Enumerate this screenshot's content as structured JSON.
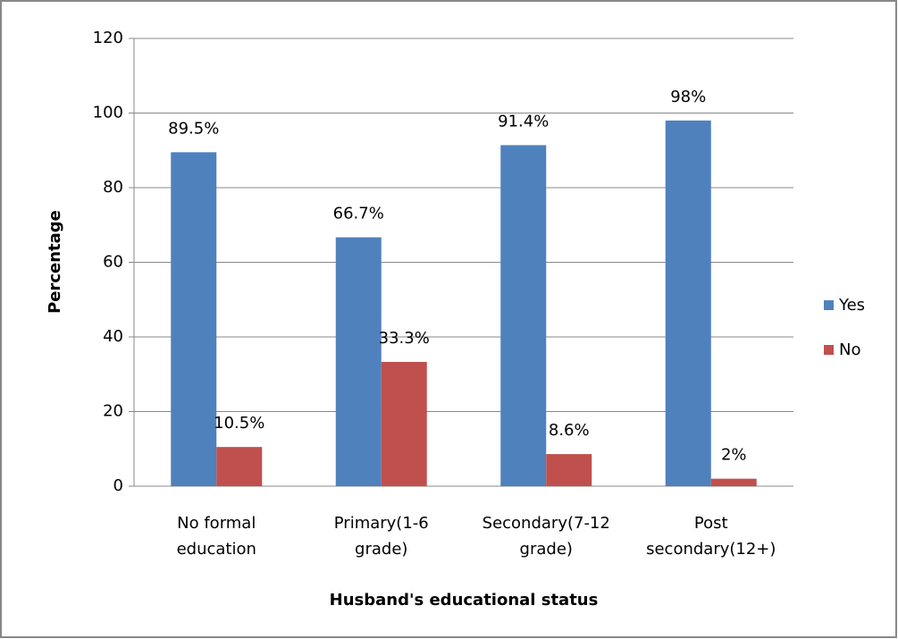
{
  "chart_data": {
    "type": "bar",
    "x_label": "Husband's educational status",
    "y_label": "Percentage",
    "categories": [
      [
        "No formal",
        "education"
      ],
      [
        "Primary(1-6",
        "grade)"
      ],
      [
        "Secondary(7-12",
        "grade)"
      ],
      [
        "Post",
        "secondary(12+)"
      ]
    ],
    "series": [
      {
        "name": "Yes",
        "color": "#4f81bd",
        "values": [
          89.5,
          66.7,
          91.4,
          98
        ],
        "value_labels": [
          "89.5%",
          "66.7%",
          "91.4%",
          "98%"
        ]
      },
      {
        "name": "No",
        "color": "#c0504d",
        "values": [
          10.5,
          33.3,
          8.6,
          2
        ],
        "value_labels": [
          "10.5%",
          "33.3%",
          "8.6%",
          "2%"
        ]
      }
    ],
    "ylim": [
      0,
      120
    ],
    "yticks": [
      0,
      20,
      40,
      60,
      80,
      100,
      120
    ],
    "grid": true,
    "legend": "right"
  }
}
